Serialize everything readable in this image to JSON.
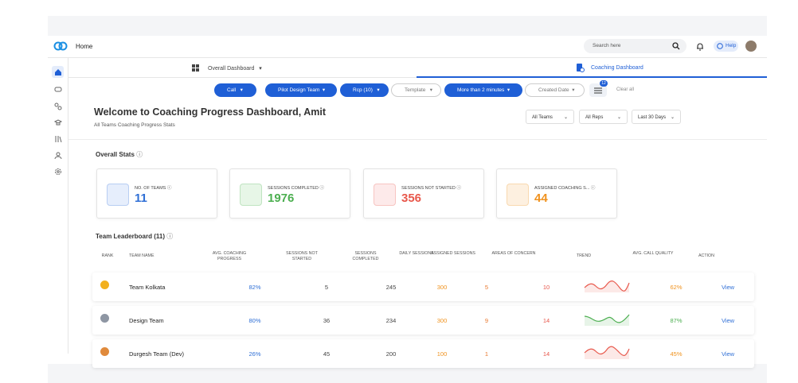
{
  "header": {
    "title": "Home",
    "search_placeholder": "Search here",
    "help": "Help"
  },
  "tabs": [
    "Overall Dashboard",
    "Coaching Dashboard"
  ],
  "filters": [
    "Call",
    "Pilot Design Team",
    "Rcp (10)",
    "Template",
    "More than 2 minutes",
    "Created Date"
  ],
  "filter_badge": "12",
  "clear": "Clear all",
  "page": {
    "title": "Welcome to Coaching Progress Dashboard, Amit",
    "subtitle": "All Teams Coaching Progress Stats"
  },
  "dropdowns": [
    "All Teams",
    "All Reps",
    "Last 30 Days"
  ],
  "overall_stats": {
    "title": "Overall Stats",
    "cards": [
      {
        "label": "NO. OF TEAMS",
        "value": 11
      },
      {
        "label": "SESSIONS COMPLETED",
        "value": 1976
      },
      {
        "label": "SESSIONS NOT STARTED",
        "value": 356
      },
      {
        "label": "ASSIGNED COACHING S...",
        "value": 44
      }
    ]
  },
  "leaderboard": {
    "title": "Team Leaderboard (11)",
    "columns": [
      "RANK",
      "TEAM NAME",
      "AVG. COACHING PROGRESS",
      "SESSIONS NOT STARTED",
      "SESSIONS COMPLETED",
      "DAILY SESSIONS",
      "ASSIGNED SESSIONS",
      "AREAS OF CONCERN",
      "TREND",
      "AVG. CALL QUALITY",
      "ACTION"
    ],
    "rows": [
      [
        "Team Kolkata",
        "82%",
        5,
        245,
        300,
        5,
        10,
        "62%",
        "View"
      ],
      [
        "Design Team",
        "80%",
        36,
        234,
        300,
        9,
        14,
        "87%",
        "View"
      ],
      [
        "Durgesh Team (Dev)",
        "26%",
        45,
        200,
        100,
        1,
        14,
        "45%",
        "View"
      ]
    ]
  }
}
